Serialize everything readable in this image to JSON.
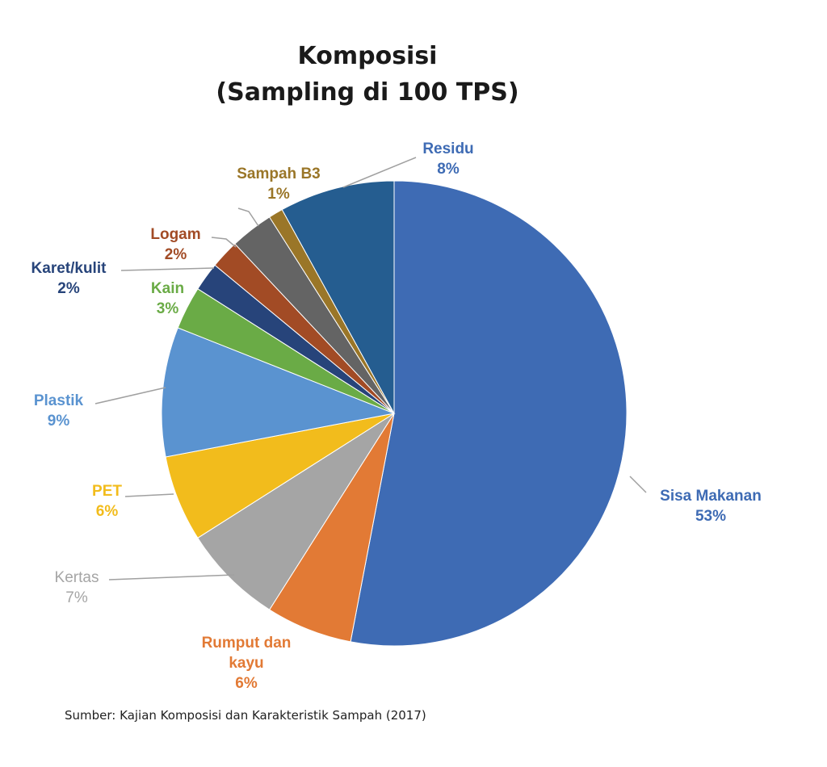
{
  "chart_data": {
    "type": "pie",
    "title": "Komposisi",
    "subtitle": "(Sampling di 100 TPS)",
    "start_angle_deg": 0,
    "direction": "clockwise",
    "slices": [
      {
        "label": "Sisa Makanan",
        "value": 53,
        "value_label": "53%",
        "color": "#3e6bb4"
      },
      {
        "label": "Rumput dan kayu",
        "value": 6,
        "value_label": "6%",
        "color": "#e27a35"
      },
      {
        "label": "Kertas",
        "value": 7,
        "value_label": "7%",
        "color": "#a5a5a5"
      },
      {
        "label": "PET",
        "value": 6,
        "value_label": "6%",
        "color": "#f2bc1c"
      },
      {
        "label": "Plastik",
        "value": 9,
        "value_label": "9%",
        "color": "#5a93d0"
      },
      {
        "label": "Kain",
        "value": 3,
        "value_label": "3%",
        "color": "#6aab46"
      },
      {
        "label": "Karet/kulit",
        "value": 2,
        "value_label": "2%",
        "color": "#27447a"
      },
      {
        "label": "Logam",
        "value": 2,
        "value_label": "2%",
        "color": "#a24b25"
      },
      {
        "label": null,
        "value": 3,
        "value_label": null,
        "color": "#646464"
      },
      {
        "label": "Sampah B3",
        "value": 1,
        "value_label": "1%",
        "color": "#9a7628"
      },
      {
        "label": "Residu",
        "value": 8,
        "value_label": "8%",
        "color": "#255d90"
      }
    ],
    "source": "Sumber: Kajian Komposisi dan Karakteristik Sampah (2017)"
  }
}
